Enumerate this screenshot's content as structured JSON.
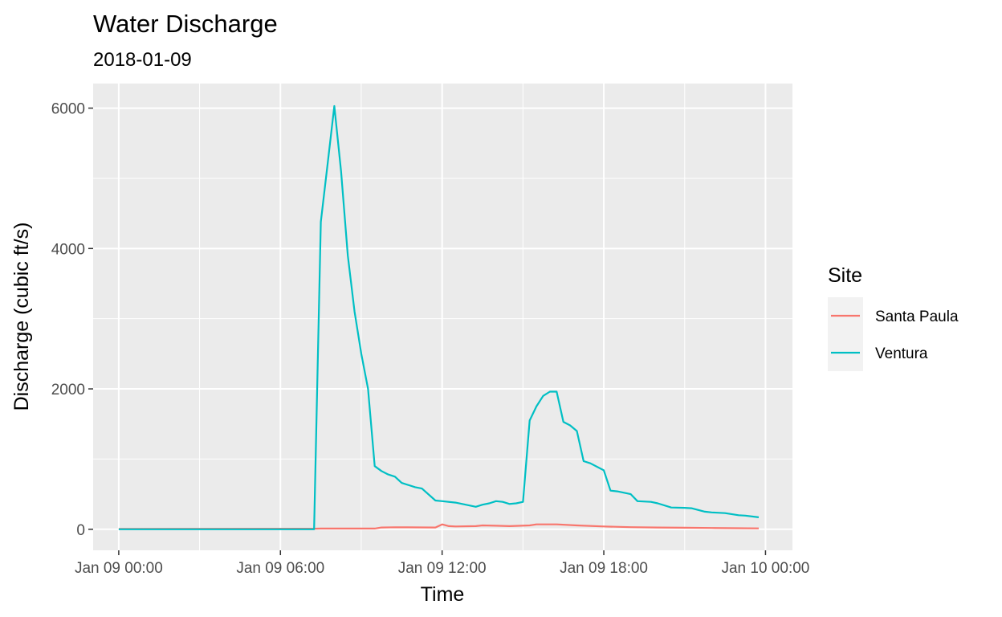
{
  "chart_data": {
    "type": "line",
    "title": "Water Discharge",
    "subtitle": "2018-01-09",
    "xlabel": "Time",
    "ylabel": "Discharge (cubic ft/s)",
    "x_ticks": [
      "Jan 09 00:00",
      "Jan 09 06:00",
      "Jan 09 12:00",
      "Jan 09 18:00",
      "Jan 10 00:00"
    ],
    "x_tick_hours": [
      0,
      6,
      12,
      18,
      24
    ],
    "xlim_hours": [
      -0.95,
      25.0
    ],
    "y_ticks": [
      0,
      2000,
      4000,
      6000
    ],
    "ylim": [
      -300,
      6350
    ],
    "grid": true,
    "legend": {
      "title": "Site",
      "position": "right"
    },
    "series": [
      {
        "name": "Santa Paula",
        "color": "#F8766D",
        "x_hours": [
          0,
          7.25,
          7.5,
          9.5,
          9.75,
          10.25,
          11.75,
          12.0,
          12.25,
          12.5,
          13.25,
          13.5,
          14.0,
          14.5,
          15.25,
          15.5,
          16.25,
          17.0,
          18.0,
          19.0,
          20.0,
          21.0,
          22.0,
          23.0,
          23.75
        ],
        "values": [
          5,
          8,
          10,
          10,
          25,
          28,
          25,
          70,
          45,
          40,
          45,
          55,
          50,
          45,
          55,
          70,
          70,
          55,
          40,
          30,
          25,
          22,
          18,
          15,
          12
        ]
      },
      {
        "name": "Ventura",
        "color": "#00BFC4",
        "x_hours": [
          0,
          6.0,
          7.25,
          7.5,
          7.75,
          8.0,
          8.25,
          8.5,
          8.75,
          9.0,
          9.25,
          9.5,
          9.75,
          10.0,
          10.25,
          10.5,
          11.0,
          11.25,
          11.75,
          12.0,
          12.5,
          13.25,
          13.5,
          13.75,
          14.0,
          14.25,
          14.5,
          14.75,
          15.0,
          15.25,
          15.5,
          15.75,
          16.0,
          16.25,
          16.5,
          16.75,
          17.0,
          17.25,
          17.5,
          18.0,
          18.25,
          18.5,
          19.0,
          19.25,
          19.75,
          20.0,
          20.5,
          21.0,
          21.25,
          21.75,
          22.0,
          22.5,
          23.0,
          23.25,
          23.75
        ],
        "values": [
          0,
          0,
          0,
          4380,
          5200,
          6030,
          5100,
          3900,
          3100,
          2500,
          2000,
          900,
          830,
          780,
          750,
          660,
          600,
          580,
          410,
          400,
          380,
          320,
          350,
          370,
          400,
          390,
          360,
          370,
          390,
          1550,
          1750,
          1900,
          1960,
          1960,
          1530,
          1480,
          1400,
          970,
          940,
          840,
          550,
          540,
          500,
          400,
          390,
          370,
          310,
          305,
          300,
          250,
          240,
          230,
          200,
          195,
          170
        ]
      }
    ]
  }
}
